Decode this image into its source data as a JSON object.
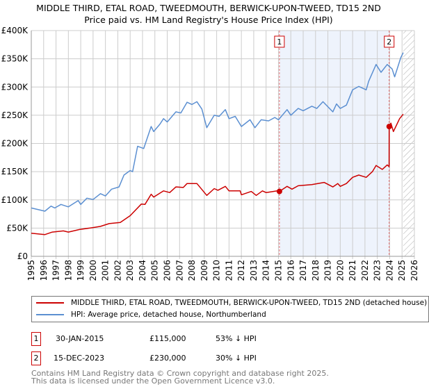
{
  "title": {
    "line1": "MIDDLE THIRD, ETAL ROAD, TWEEDMOUTH, BERWICK-UPON-TWEED, TD15 2ND",
    "line2": "Price paid vs. HM Land Registry's House Price Index (HPI)"
  },
  "colors": {
    "property": "#cc0000",
    "hpi": "#5b8fd1",
    "shade": "#eef3fc",
    "grid": "#cccccc"
  },
  "chart_data": {
    "type": "line",
    "ylim": [
      0,
      400000
    ],
    "xlim": [
      1995,
      2026
    ],
    "yticks": [
      0,
      50000,
      100000,
      150000,
      200000,
      250000,
      300000,
      350000,
      400000
    ],
    "ytick_labels": [
      "£0",
      "£50K",
      "£100K",
      "£150K",
      "£200K",
      "£250K",
      "£300K",
      "£350K",
      "£400K"
    ],
    "xticks": [
      "1995",
      "1996",
      "1997",
      "1998",
      "1999",
      "2000",
      "2001",
      "2002",
      "2003",
      "2004",
      "2005",
      "2006",
      "2007",
      "2008",
      "2009",
      "2010",
      "2011",
      "2012",
      "2013",
      "2014",
      "2015",
      "2016",
      "2017",
      "2018",
      "2019",
      "2020",
      "2021",
      "2022",
      "2023",
      "2024",
      "2025",
      "2026"
    ],
    "shaded_range": [
      2015.08,
      2023.96
    ],
    "future_hatch_from": 2025.1,
    "grid": true,
    "series": [
      {
        "name": "MIDDLE THIRD, ETAL ROAD, TWEEDMOUTH, BERWICK-UPON-TWEED, TD15 2ND (detached house)",
        "key": "property",
        "x": [
          1995,
          1996.1,
          1996.7,
          1997.6,
          1998,
          1998.9,
          2000,
          2000.6,
          2001.3,
          2002.2,
          2003,
          2003.9,
          2004.2,
          2004.7,
          2004.9,
          2005.7,
          2006.2,
          2006.7,
          2007.3,
          2007.6,
          2008.4,
          2009.2,
          2009.8,
          2010.1,
          2010.7,
          2011,
          2011.9,
          2012,
          2012.8,
          2013.2,
          2013.7,
          2014,
          2014.9,
          2015.08,
          2015.7,
          2016.1,
          2016.6,
          2017.7,
          2018.7,
          2019.4,
          2019.8,
          2020,
          2020.5,
          2021,
          2021.5,
          2022.1,
          2022.6,
          2022.9,
          2023.4,
          2023.8,
          2023.95,
          2023.96,
          2024.1,
          2024.3,
          2024.8,
          2025.1
        ],
        "y": [
          41000,
          38500,
          43000,
          45000,
          43000,
          47500,
          51000,
          53000,
          58000,
          60000,
          72000,
          92500,
          92000,
          110000,
          105000,
          116000,
          113000,
          123000,
          122000,
          129000,
          129000,
          108000,
          120000,
          117000,
          124000,
          116000,
          116000,
          109000,
          115000,
          108000,
          116000,
          113000,
          116000,
          115000,
          124000,
          119000,
          125000,
          127000,
          131000,
          123000,
          129000,
          124000,
          129000,
          140000,
          144000,
          140000,
          150000,
          161000,
          154000,
          162000,
          159000,
          230000,
          236000,
          221000,
          244000,
          252000
        ]
      },
      {
        "name": "HPI: Average price, detached house, Northumberland",
        "key": "hpi",
        "x": [
          1995,
          1996.1,
          1996.6,
          1996.9,
          1997.4,
          1998,
          1998.8,
          1999,
          1999.5,
          2000,
          2000.6,
          2001,
          2001.5,
          2002.1,
          2002.5,
          2003,
          2003.2,
          2003.6,
          2004.1,
          2004.7,
          2004.9,
          2005.4,
          2005.7,
          2006,
          2006.7,
          2007.1,
          2007.6,
          2008,
          2008.4,
          2008.8,
          2009.2,
          2009.8,
          2010.2,
          2010.7,
          2011,
          2011.5,
          2012,
          2012.7,
          2013.1,
          2013.6,
          2014.2,
          2014.7,
          2015,
          2015.7,
          2016,
          2016.6,
          2017,
          2017.7,
          2018.1,
          2018.6,
          2019.4,
          2019.7,
          2020,
          2020.5,
          2021,
          2021.5,
          2022.1,
          2022.3,
          2022.9,
          2023.3,
          2023.8,
          2024.2,
          2024.4,
          2024.9,
          2025.1
        ],
        "y": [
          85600,
          80000,
          89000,
          85600,
          92000,
          87600,
          98700,
          92000,
          103000,
          100700,
          111000,
          107000,
          119000,
          123000,
          144000,
          152000,
          150000,
          195000,
          191000,
          230000,
          221000,
          234000,
          244000,
          238000,
          256000,
          254000,
          273000,
          269000,
          274000,
          261000,
          228000,
          250000,
          248000,
          260000,
          244000,
          248000,
          230000,
          242000,
          228000,
          242000,
          240000,
          246000,
          242000,
          260000,
          250000,
          262000,
          258000,
          266000,
          262000,
          274000,
          256000,
          270000,
          262000,
          268000,
          295000,
          301000,
          295000,
          310000,
          340000,
          326000,
          340000,
          332000,
          318000,
          352000,
          361000
        ]
      }
    ],
    "sales": [
      {
        "label": "1",
        "x": 2015.08,
        "y": 115000,
        "date": "30-JAN-2015",
        "price": "£115,000",
        "hpi_delta": "53% ↓ HPI"
      },
      {
        "label": "2",
        "x": 2023.96,
        "y": 230000,
        "date": "15-DEC-2023",
        "price": "£230,000",
        "hpi_delta": "30% ↓ HPI"
      }
    ]
  },
  "legend": {
    "property": "MIDDLE THIRD, ETAL ROAD, TWEEDMOUTH, BERWICK-UPON-TWEED, TD15 2ND (detached house)",
    "hpi": "HPI: Average price, detached house, Northumberland"
  },
  "footer": {
    "line1": "Contains HM Land Registry data © Crown copyright and database right 2025.",
    "line2": "This data is licensed under the Open Government Licence v3.0."
  }
}
